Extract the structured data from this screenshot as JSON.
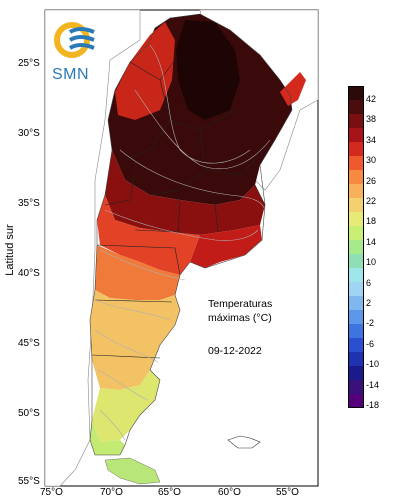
{
  "yaxis_label": "Latitud sur",
  "lat_ticks": [
    "25°S",
    "30°S",
    "35°S",
    "40°S",
    "45°S",
    "50°S",
    "55°S"
  ],
  "lon_ticks": [
    "75°O",
    "70°O",
    "65°O",
    "60°O",
    "55°O"
  ],
  "logo": {
    "text": "SMN"
  },
  "annotation": {
    "line1": "Temperaturas",
    "line2": "máximas (°C)",
    "date": "09-12-2022"
  },
  "colorbar": {
    "labels": [
      "42",
      "38",
      "34",
      "30",
      "26",
      "22",
      "18",
      "14",
      "10",
      "6",
      "2",
      "-2",
      "-6",
      "-10",
      "-14",
      "-18"
    ],
    "colors": [
      "#2b0a0a",
      "#4a0d0d",
      "#7a0f12",
      "#a6141a",
      "#d42a1e",
      "#ee5a2c",
      "#f58a40",
      "#f8b15a",
      "#f4d070",
      "#e7ea76",
      "#c8ee74",
      "#a6ea8c",
      "#8ee0b4",
      "#9fe6ea",
      "#9fd5f2",
      "#7fb7ee",
      "#5c97e8",
      "#3e74e0",
      "#2a50cf",
      "#1f32b0",
      "#1b1a8c",
      "#3a107a",
      "#55007a"
    ]
  }
}
